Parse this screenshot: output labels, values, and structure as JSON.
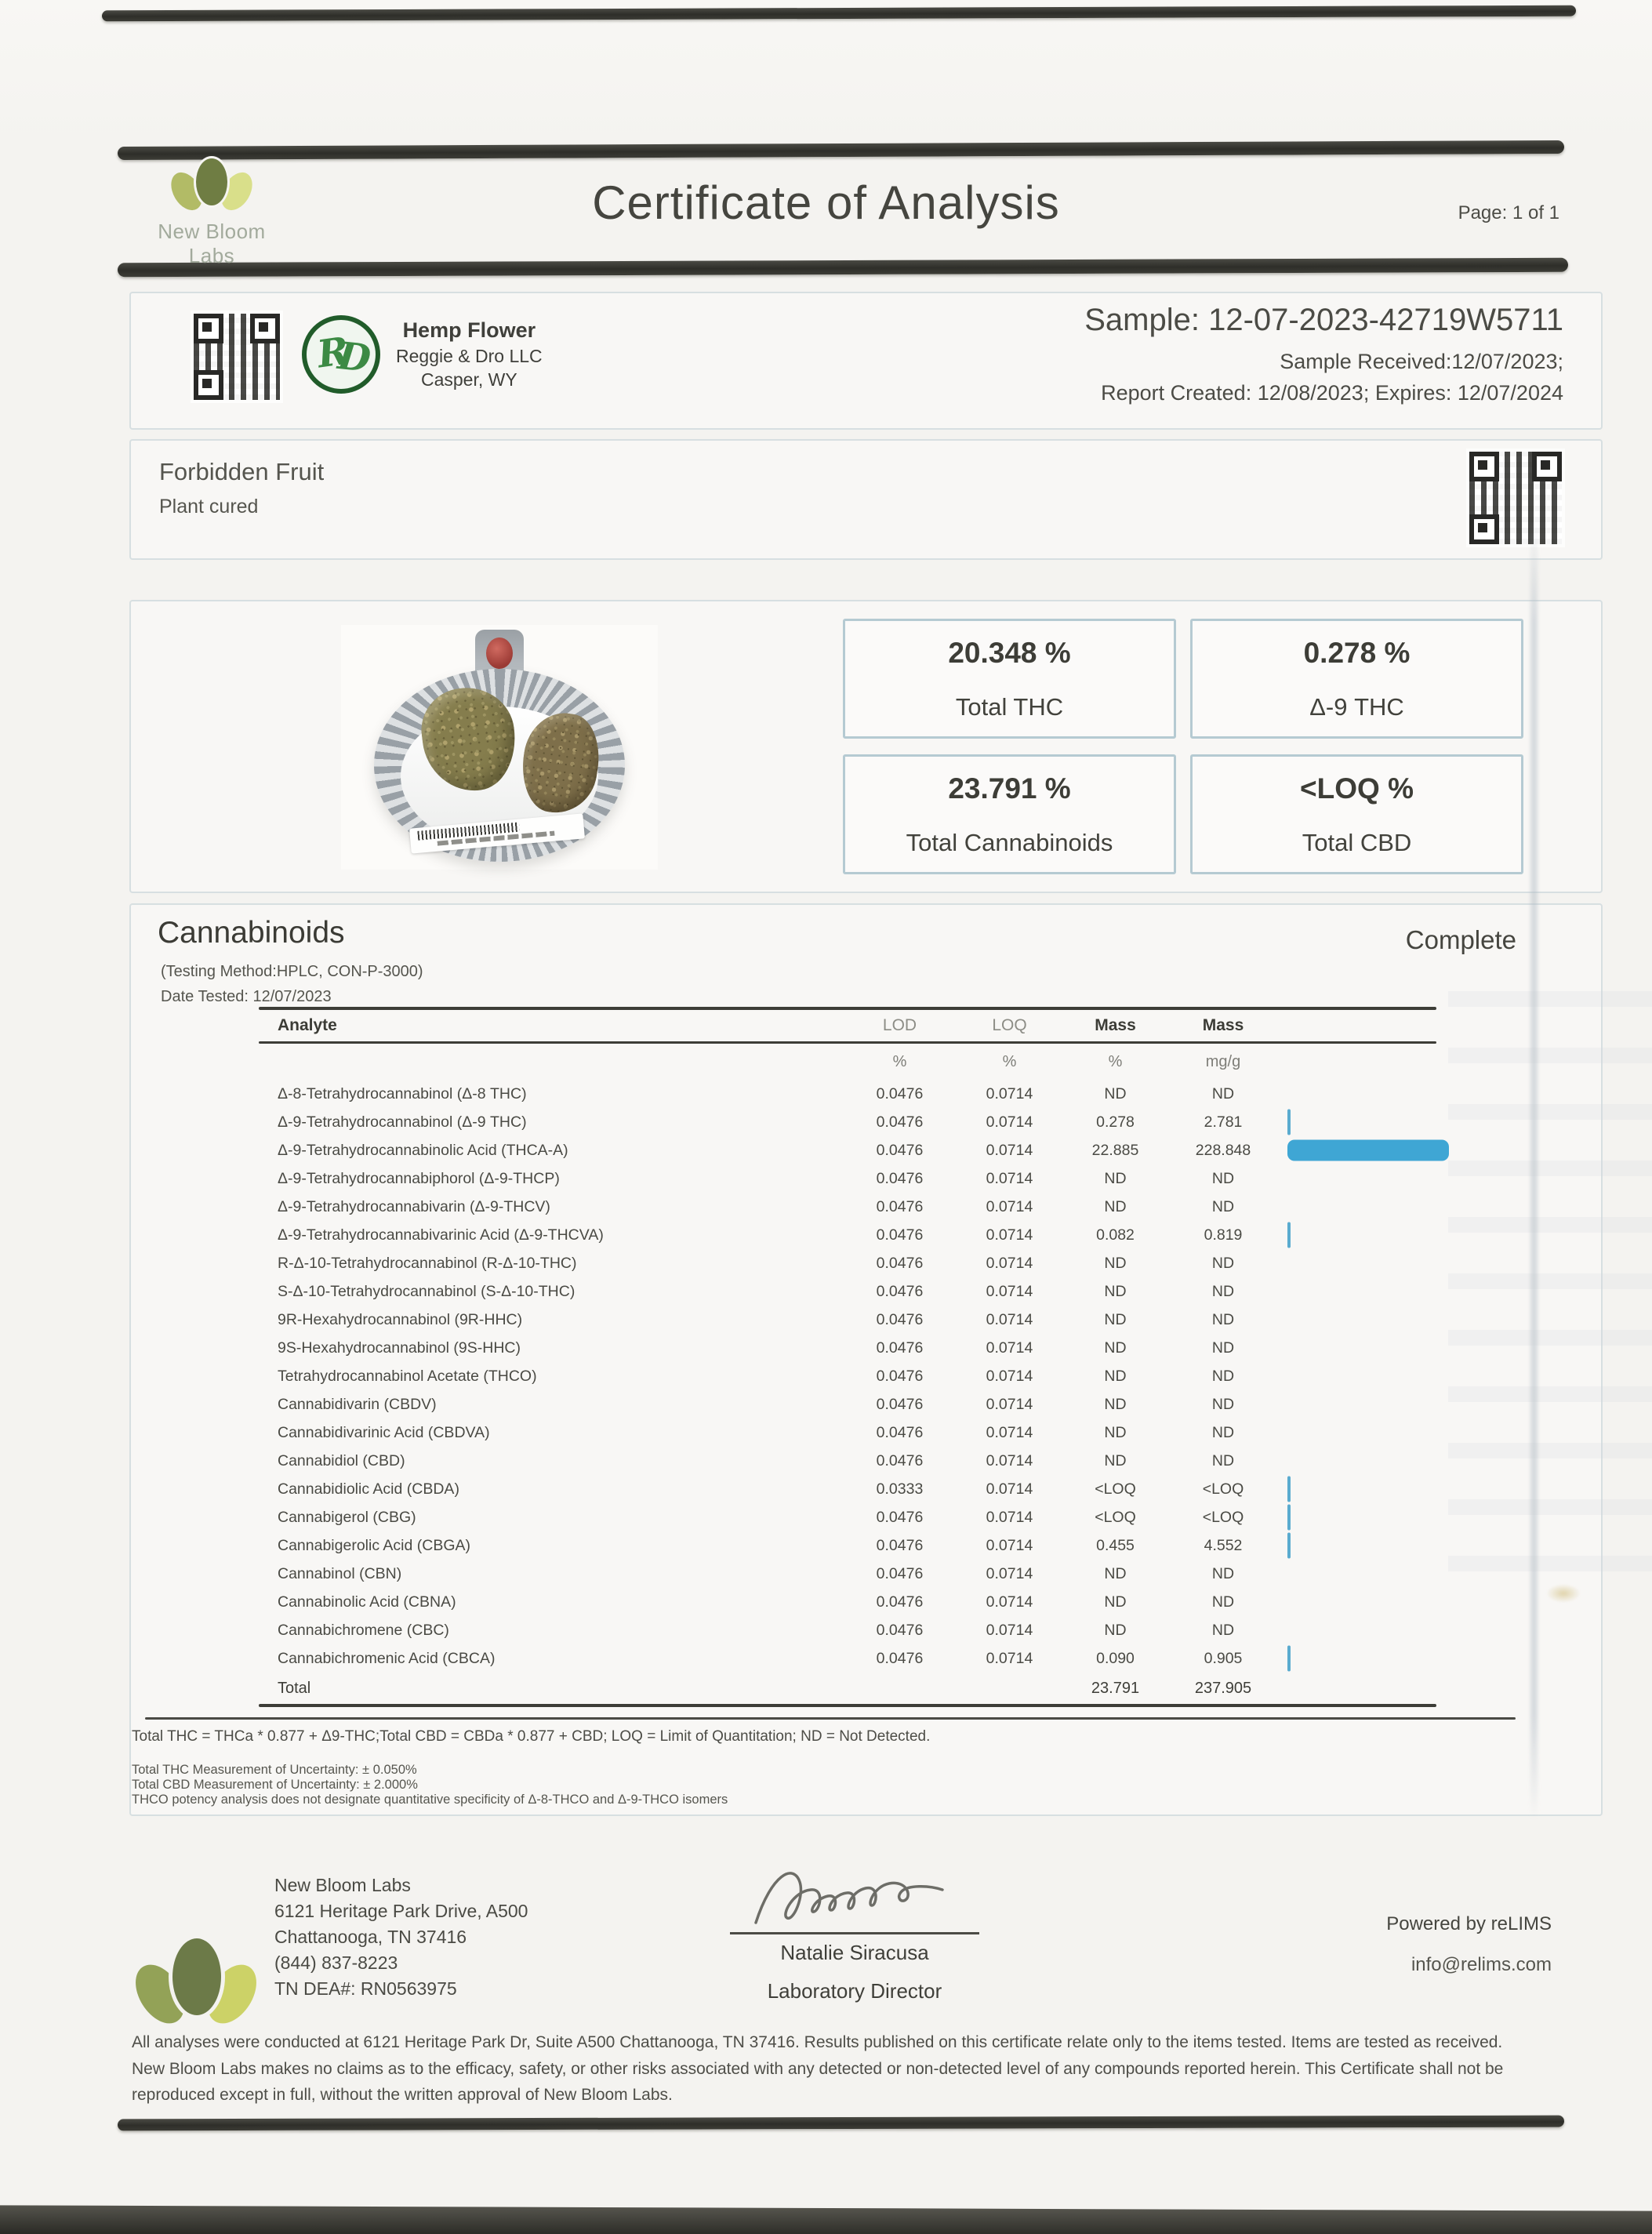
{
  "header": {
    "lab_name": "New Bloom Labs",
    "title": "Certificate of Analysis",
    "page_label": "Page: 1 of 1"
  },
  "client": {
    "product_type": "Hemp Flower",
    "company": "Reggie & Dro LLC",
    "location": "Casper, WY"
  },
  "sample": {
    "id_line": "Sample: 12-07-2023-42719W5711",
    "received_line": "Sample Received:12/07/2023;",
    "created_line": "Report Created: 12/08/2023; Expires: 12/07/2024"
  },
  "product": {
    "name": "Forbidden Fruit",
    "prep": "Plant cured"
  },
  "summary_boxes": [
    {
      "value": "20.348 %",
      "label": "Total THC"
    },
    {
      "value": "0.278 %",
      "label": "Δ-9 THC"
    },
    {
      "value": "23.791 %",
      "label": "Total Cannabinoids"
    },
    {
      "value": "<LOQ %",
      "label": "Total CBD"
    }
  ],
  "cannabinoids": {
    "heading": "Cannabinoids",
    "status": "Complete",
    "method_line": "(Testing Method:HPLC, CON-P-3000)",
    "date_line": "Date Tested: 12/07/2023",
    "columns": {
      "analyte": "Analyte",
      "lod": "LOD",
      "loq": "LOQ",
      "mass1": "Mass",
      "mass2": "Mass"
    },
    "units": {
      "lod": "%",
      "loq": "%",
      "mass1": "%",
      "mass2": "mg/g"
    },
    "rows": [
      {
        "analyte": "Δ-8-Tetrahydrocannabinol (Δ-8 THC)",
        "lod": "0.0476",
        "loq": "0.0714",
        "mass_pct": "ND",
        "mass_mgg": "ND",
        "bar": null
      },
      {
        "analyte": "Δ-9-Tetrahydrocannabinol (Δ-9 THC)",
        "lod": "0.0476",
        "loq": "0.0714",
        "mass_pct": "0.278",
        "mass_mgg": "2.781",
        "bar": 0.278
      },
      {
        "analyte": "Δ-9-Tetrahydrocannabinolic Acid (THCA-A)",
        "lod": "0.0476",
        "loq": "0.0714",
        "mass_pct": "22.885",
        "mass_mgg": "228.848",
        "bar": 22.885
      },
      {
        "analyte": "Δ-9-Tetrahydrocannabiphorol (Δ-9-THCP)",
        "lod": "0.0476",
        "loq": "0.0714",
        "mass_pct": "ND",
        "mass_mgg": "ND",
        "bar": null
      },
      {
        "analyte": "Δ-9-Tetrahydrocannabivarin (Δ-9-THCV)",
        "lod": "0.0476",
        "loq": "0.0714",
        "mass_pct": "ND",
        "mass_mgg": "ND",
        "bar": null
      },
      {
        "analyte": "Δ-9-Tetrahydrocannabivarinic Acid (Δ-9-THCVA)",
        "lod": "0.0476",
        "loq": "0.0714",
        "mass_pct": "0.082",
        "mass_mgg": "0.819",
        "bar": 0.082
      },
      {
        "analyte": "R-Δ-10-Tetrahydrocannabinol (R-Δ-10-THC)",
        "lod": "0.0476",
        "loq": "0.0714",
        "mass_pct": "ND",
        "mass_mgg": "ND",
        "bar": null
      },
      {
        "analyte": "S-Δ-10-Tetrahydrocannabinol (S-Δ-10-THC)",
        "lod": "0.0476",
        "loq": "0.0714",
        "mass_pct": "ND",
        "mass_mgg": "ND",
        "bar": null
      },
      {
        "analyte": "9R-Hexahydrocannabinol (9R-HHC)",
        "lod": "0.0476",
        "loq": "0.0714",
        "mass_pct": "ND",
        "mass_mgg": "ND",
        "bar": null
      },
      {
        "analyte": "9S-Hexahydrocannabinol (9S-HHC)",
        "lod": "0.0476",
        "loq": "0.0714",
        "mass_pct": "ND",
        "mass_mgg": "ND",
        "bar": null
      },
      {
        "analyte": "Tetrahydrocannabinol Acetate (THCO)",
        "lod": "0.0476",
        "loq": "0.0714",
        "mass_pct": "ND",
        "mass_mgg": "ND",
        "bar": null
      },
      {
        "analyte": "Cannabidivarin (CBDV)",
        "lod": "0.0476",
        "loq": "0.0714",
        "mass_pct": "ND",
        "mass_mgg": "ND",
        "bar": null
      },
      {
        "analyte": "Cannabidivarinic Acid (CBDVA)",
        "lod": "0.0476",
        "loq": "0.0714",
        "mass_pct": "ND",
        "mass_mgg": "ND",
        "bar": null
      },
      {
        "analyte": "Cannabidiol (CBD)",
        "lod": "0.0476",
        "loq": "0.0714",
        "mass_pct": "ND",
        "mass_mgg": "ND",
        "bar": null
      },
      {
        "analyte": "Cannabidiolic Acid (CBDA)",
        "lod": "0.0333",
        "loq": "0.0714",
        "mass_pct": "<LOQ",
        "mass_mgg": "<LOQ",
        "bar": "tick"
      },
      {
        "analyte": "Cannabigerol (CBG)",
        "lod": "0.0476",
        "loq": "0.0714",
        "mass_pct": "<LOQ",
        "mass_mgg": "<LOQ",
        "bar": "tick"
      },
      {
        "analyte": "Cannabigerolic Acid (CBGA)",
        "lod": "0.0476",
        "loq": "0.0714",
        "mass_pct": "0.455",
        "mass_mgg": "4.552",
        "bar": 0.455
      },
      {
        "analyte": "Cannabinol (CBN)",
        "lod": "0.0476",
        "loq": "0.0714",
        "mass_pct": "ND",
        "mass_mgg": "ND",
        "bar": null
      },
      {
        "analyte": "Cannabinolic Acid (CBNA)",
        "lod": "0.0476",
        "loq": "0.0714",
        "mass_pct": "ND",
        "mass_mgg": "ND",
        "bar": null
      },
      {
        "analyte": "Cannabichromene (CBC)",
        "lod": "0.0476",
        "loq": "0.0714",
        "mass_pct": "ND",
        "mass_mgg": "ND",
        "bar": null
      },
      {
        "analyte": "Cannabichromenic Acid (CBCA)",
        "lod": "0.0476",
        "loq": "0.0714",
        "mass_pct": "0.090",
        "mass_mgg": "0.905",
        "bar": 0.09
      }
    ],
    "total": {
      "label": "Total",
      "mass_pct": "23.791",
      "mass_mgg": "237.905"
    },
    "legend": "Total THC = THCa * 0.877 + Δ9-THC;Total CBD = CBDa * 0.877 + CBD; LOQ = Limit of Quantitation; ND = Not Detected.",
    "notes": [
      "Total THC Measurement of Uncertainty: ± 0.050%",
      "Total CBD Measurement of Uncertainty: ± 2.000%",
      "THCO potency analysis does not designate quantitative specificity of Δ-8-THCO and Δ-9-THCO isomers"
    ]
  },
  "footer": {
    "lab_name": "New Bloom Labs",
    "address1": "6121 Heritage Park Drive, A500",
    "address2": "Chattanooga, TN 37416",
    "phone": "(844) 837-8223",
    "dea": "TN DEA#: RN0563975",
    "signer_name": "Natalie Siracusa",
    "signer_title": "Laboratory Director",
    "powered_by": "Powered by reLIMS",
    "contact_email": "info@relims.com",
    "disclaimer": "All analyses were conducted at 6121 Heritage Park Dr, Suite A500 Chattanooga, TN 37416. Results published on this certificate relate only to the items tested. Items are tested as received. New Bloom Labs makes no claims as to the efficacy, safety, or other risks associated with any detected or non-detected level of any compounds reported herein. This Certificate shall not be reproduced except in full, without the written approval of New Bloom Labs."
  },
  "colors": {
    "accent_bar": "#3fa6d4",
    "box_border": "#b5cad2",
    "scan_ink": "#32322d"
  }
}
